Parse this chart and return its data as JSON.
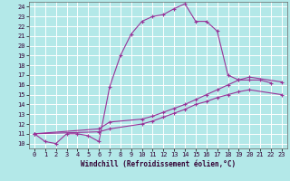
{
  "xlabel": "Windchill (Refroidissement éolien,°C)",
  "xlim": [
    -0.5,
    23.5
  ],
  "ylim": [
    9.5,
    24.5
  ],
  "xticks": [
    0,
    1,
    2,
    3,
    4,
    5,
    6,
    7,
    8,
    9,
    10,
    11,
    12,
    13,
    14,
    15,
    16,
    17,
    18,
    19,
    20,
    21,
    22,
    23
  ],
  "yticks": [
    10,
    11,
    12,
    13,
    14,
    15,
    16,
    17,
    18,
    19,
    20,
    21,
    22,
    23,
    24
  ],
  "bg_color": "#b3e8e8",
  "grid_color": "#ffffff",
  "line_color": "#993399",
  "line1_y": [
    11.0,
    10.2,
    10.0,
    11.0,
    11.0,
    10.8,
    10.2,
    15.8,
    19.0,
    21.2,
    22.5,
    23.0,
    23.2,
    23.8,
    24.3,
    22.5,
    22.5,
    21.5,
    17.0,
    16.5,
    16.5,
    16.5,
    16.2,
    null
  ],
  "line2_x": [
    0,
    6,
    7,
    10,
    11,
    12,
    13,
    14,
    15,
    16,
    17,
    18,
    19,
    20,
    23
  ],
  "line2_y": [
    11.0,
    11.5,
    12.2,
    12.5,
    12.8,
    13.2,
    13.6,
    14.0,
    14.5,
    15.0,
    15.5,
    16.0,
    16.5,
    16.8,
    16.3
  ],
  "line3_x": [
    0,
    6,
    7,
    10,
    11,
    12,
    13,
    14,
    15,
    16,
    17,
    18,
    19,
    20,
    23
  ],
  "line3_y": [
    11.0,
    11.2,
    11.5,
    12.0,
    12.3,
    12.7,
    13.1,
    13.5,
    14.0,
    14.3,
    14.7,
    15.0,
    15.3,
    15.5,
    15.0
  ],
  "tick_fontsize": 5,
  "xlabel_fontsize": 5.5,
  "marker_size": 2.5,
  "lw": 0.8
}
